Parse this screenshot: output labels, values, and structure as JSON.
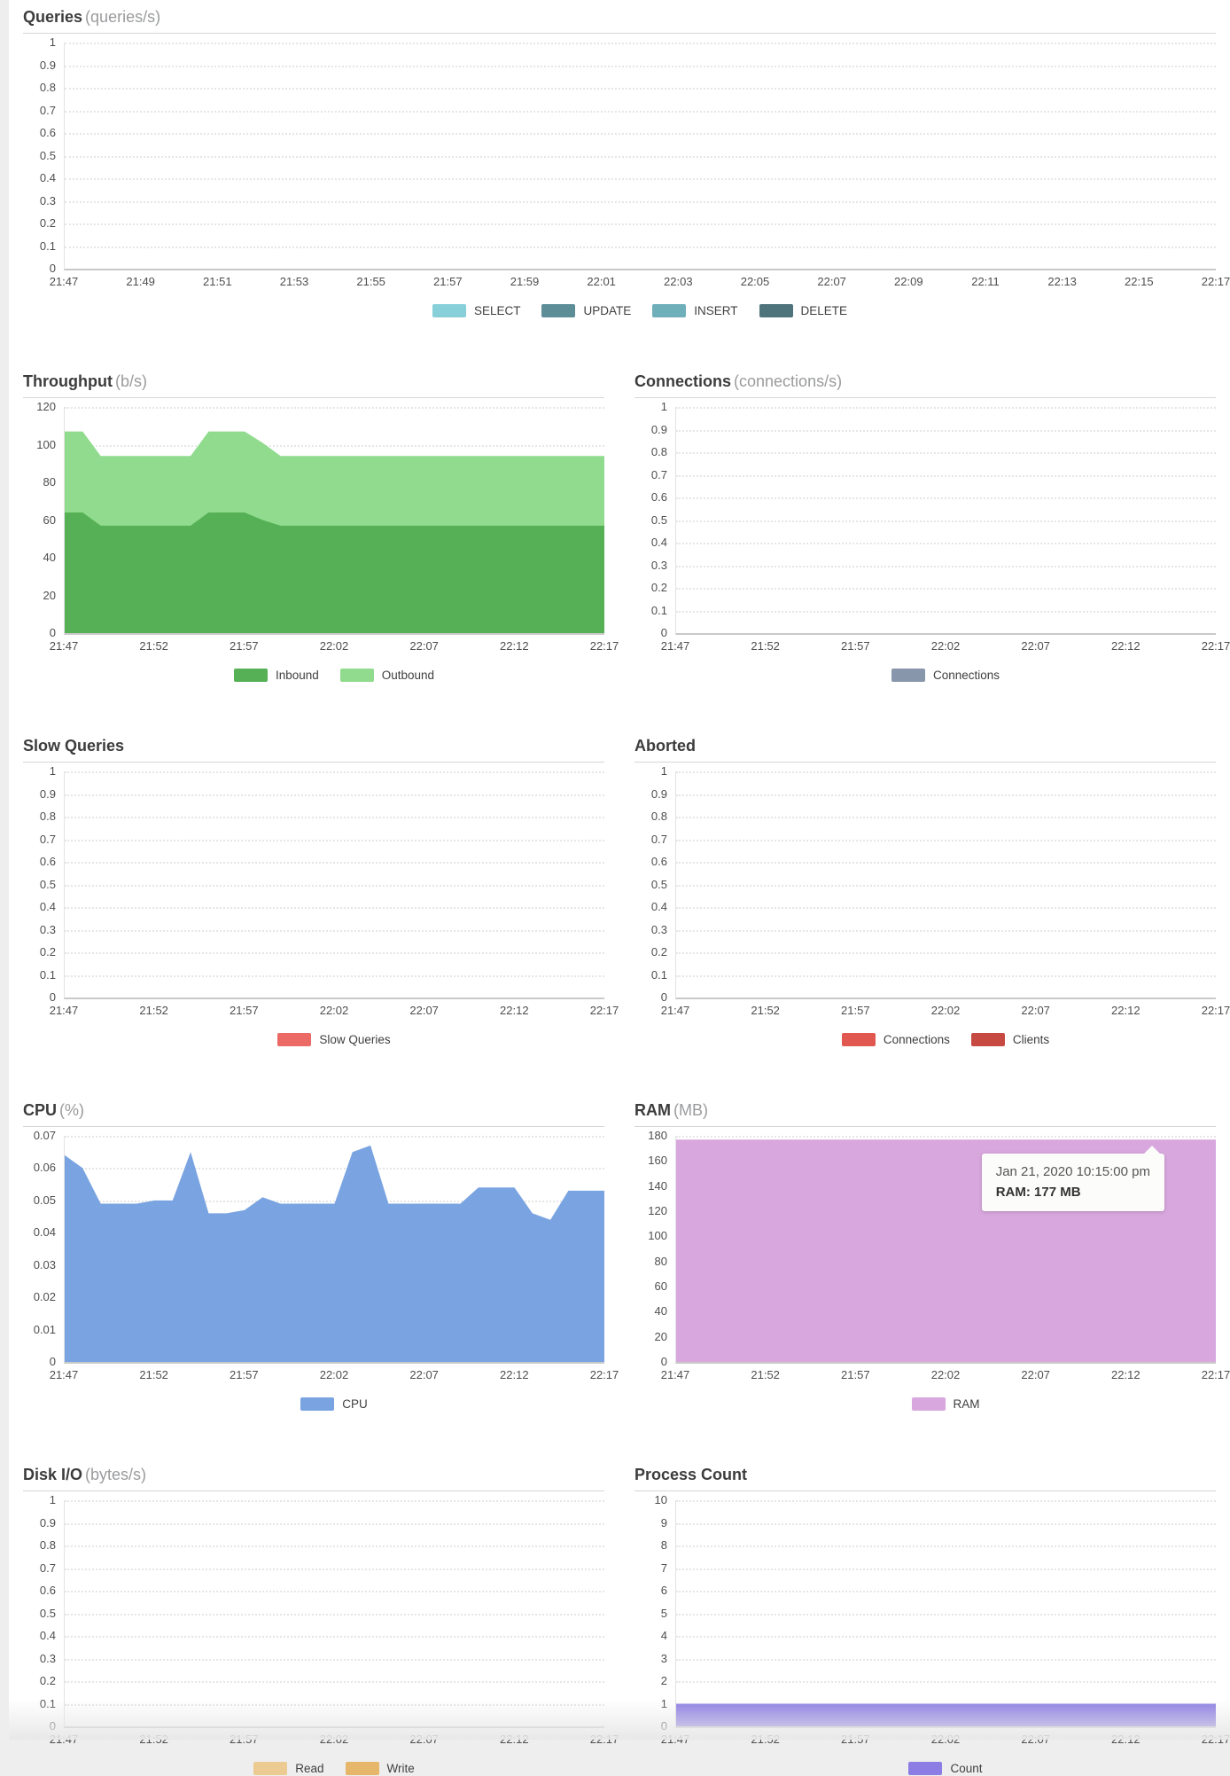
{
  "chart_data": [
    {
      "id": "queries",
      "type": "area",
      "title": "Queries",
      "unit": "(queries/s)",
      "ylim": [
        0,
        1
      ],
      "yticks": [
        "0",
        "0.1",
        "0.2",
        "0.3",
        "0.4",
        "0.5",
        "0.6",
        "0.7",
        "0.8",
        "0.9",
        "1"
      ],
      "x_labels": [
        "21:47",
        "21:49",
        "21:51",
        "21:53",
        "21:55",
        "21:57",
        "21:59",
        "22:01",
        "22:03",
        "22:05",
        "22:07",
        "22:09",
        "22:11",
        "22:13",
        "22:15",
        "22:17"
      ],
      "grid": "dotted",
      "legend_position": "bottom",
      "series": [],
      "legend": [
        {
          "label": "SELECT",
          "color": "#87d0d9"
        },
        {
          "label": "UPDATE",
          "color": "#5d8e98"
        },
        {
          "label": "INSERT",
          "color": "#6fafba"
        },
        {
          "label": "DELETE",
          "color": "#4f737b"
        }
      ]
    },
    {
      "id": "throughput",
      "type": "area",
      "title": "Throughput",
      "unit": "(b/s)",
      "ylim": [
        0,
        120
      ],
      "yticks": [
        "0",
        "20",
        "40",
        "60",
        "80",
        "100",
        "120"
      ],
      "x_labels": [
        "21:47",
        "21:52",
        "21:57",
        "22:02",
        "22:07",
        "22:12",
        "22:17"
      ],
      "grid": "dotted",
      "legend_position": "bottom",
      "series": [
        {
          "name": "Outbound",
          "color": "#90db8d",
          "values": [
            107,
            107,
            94,
            94,
            94,
            94,
            94,
            94,
            107,
            107,
            107,
            101,
            94,
            94,
            94,
            94,
            94,
            94,
            94,
            94,
            94,
            94,
            94,
            94,
            94,
            94,
            94,
            94,
            94,
            94,
            94
          ]
        },
        {
          "name": "Inbound",
          "color": "#55b056",
          "values": [
            64,
            64,
            57,
            57,
            57,
            57,
            57,
            57,
            64,
            64,
            64,
            60,
            57,
            57,
            57,
            57,
            57,
            57,
            57,
            57,
            57,
            57,
            57,
            57,
            57,
            57,
            57,
            57,
            57,
            57,
            57
          ]
        }
      ],
      "legend": [
        {
          "label": "Inbound",
          "color": "#55b056"
        },
        {
          "label": "Outbound",
          "color": "#90db8d"
        }
      ]
    },
    {
      "id": "connections",
      "type": "area",
      "title": "Connections",
      "unit": "(connections/s)",
      "ylim": [
        0,
        1
      ],
      "yticks": [
        "0",
        "0.1",
        "0.2",
        "0.3",
        "0.4",
        "0.5",
        "0.6",
        "0.7",
        "0.8",
        "0.9",
        "1"
      ],
      "x_labels": [
        "21:47",
        "21:52",
        "21:57",
        "22:02",
        "22:07",
        "22:12",
        "22:17"
      ],
      "grid": "dotted",
      "legend_position": "bottom",
      "series": [],
      "legend": [
        {
          "label": "Connections",
          "color": "#8796ab"
        }
      ]
    },
    {
      "id": "slow-queries",
      "type": "area",
      "title": "Slow Queries",
      "unit": "",
      "ylim": [
        0,
        1
      ],
      "yticks": [
        "0",
        "0.1",
        "0.2",
        "0.3",
        "0.4",
        "0.5",
        "0.6",
        "0.7",
        "0.8",
        "0.9",
        "1"
      ],
      "x_labels": [
        "21:47",
        "21:52",
        "21:57",
        "22:02",
        "22:07",
        "22:12",
        "22:17"
      ],
      "grid": "dotted",
      "legend_position": "bottom",
      "series": [],
      "legend": [
        {
          "label": "Slow Queries",
          "color": "#ec6a66"
        }
      ]
    },
    {
      "id": "aborted",
      "type": "area",
      "title": "Aborted",
      "unit": "",
      "ylim": [
        0,
        1
      ],
      "yticks": [
        "0",
        "0.1",
        "0.2",
        "0.3",
        "0.4",
        "0.5",
        "0.6",
        "0.7",
        "0.8",
        "0.9",
        "1"
      ],
      "x_labels": [
        "21:47",
        "21:52",
        "21:57",
        "22:02",
        "22:07",
        "22:12",
        "22:17"
      ],
      "grid": "dotted",
      "legend_position": "bottom",
      "series": [],
      "legend": [
        {
          "label": "Connections",
          "color": "#e0584f"
        },
        {
          "label": "Clients",
          "color": "#c64a41"
        }
      ]
    },
    {
      "id": "cpu",
      "type": "area",
      "title": "CPU",
      "unit": "(%)",
      "ylim": [
        0,
        0.07
      ],
      "yticks": [
        "0",
        "0.01",
        "0.02",
        "0.03",
        "0.04",
        "0.05",
        "0.06",
        "0.07"
      ],
      "x_labels": [
        "21:47",
        "21:52",
        "21:57",
        "22:02",
        "22:07",
        "22:12",
        "22:17"
      ],
      "grid": "dotted",
      "legend_position": "bottom",
      "series": [
        {
          "name": "CPU",
          "color": "#79a3e1",
          "values": [
            0.064,
            0.06,
            0.049,
            0.049,
            0.049,
            0.05,
            0.05,
            0.065,
            0.046,
            0.046,
            0.047,
            0.051,
            0.049,
            0.049,
            0.049,
            0.049,
            0.065,
            0.067,
            0.049,
            0.049,
            0.049,
            0.049,
            0.049,
            0.054,
            0.054,
            0.054,
            0.046,
            0.044,
            0.053,
            0.053,
            0.053
          ]
        }
      ],
      "legend": [
        {
          "label": "CPU",
          "color": "#79a3e1"
        }
      ]
    },
    {
      "id": "ram",
      "type": "area",
      "title": "RAM",
      "unit": "(MB)",
      "ylim": [
        0,
        180
      ],
      "yticks": [
        "0",
        "20",
        "40",
        "60",
        "80",
        "100",
        "120",
        "140",
        "160",
        "180"
      ],
      "x_labels": [
        "21:47",
        "21:52",
        "21:57",
        "22:02",
        "22:07",
        "22:12",
        "22:17"
      ],
      "grid": "dotted",
      "legend_position": "bottom",
      "series": [
        {
          "name": "RAM",
          "color": "#d8a7de",
          "values": [
            177,
            177,
            177,
            177,
            177,
            177,
            177,
            177,
            177,
            177,
            177,
            177,
            177,
            177,
            177,
            177,
            177,
            177,
            177,
            177,
            177,
            177,
            177,
            177,
            177,
            177,
            177,
            177,
            177,
            177,
            177
          ]
        }
      ],
      "legend": [
        {
          "label": "RAM",
          "color": "#d8a7de"
        }
      ],
      "tooltip": {
        "date": "Jan 21, 2020 10:15:00 pm",
        "value": "RAM: 177 MB"
      }
    },
    {
      "id": "disk-io",
      "type": "area",
      "title": "Disk I/O",
      "unit": "(bytes/s)",
      "ylim": [
        0,
        1
      ],
      "yticks": [
        "0",
        "0.1",
        "0.2",
        "0.3",
        "0.4",
        "0.5",
        "0.6",
        "0.7",
        "0.8",
        "0.9",
        "1"
      ],
      "x_labels": [
        "21:47",
        "21:52",
        "21:57",
        "22:02",
        "22:07",
        "22:12",
        "22:17"
      ],
      "grid": "dotted",
      "legend_position": "bottom",
      "series": [],
      "legend": [
        {
          "label": "Read",
          "color": "#eccb92"
        },
        {
          "label": "Write",
          "color": "#e6b76a"
        }
      ]
    },
    {
      "id": "process-count",
      "type": "area",
      "title": "Process Count",
      "unit": "",
      "ylim": [
        0,
        10
      ],
      "yticks": [
        "0",
        "1",
        "2",
        "3",
        "4",
        "5",
        "6",
        "7",
        "8",
        "9",
        "10"
      ],
      "x_labels": [
        "21:47",
        "21:52",
        "21:57",
        "22:02",
        "22:07",
        "22:12",
        "22:17"
      ],
      "grid": "dotted",
      "legend_position": "bottom",
      "series": [
        {
          "name": "Count",
          "color": "#8c7de4",
          "values": [
            1,
            1,
            1,
            1,
            1,
            1,
            1,
            1,
            1,
            1,
            1,
            1,
            1,
            1,
            1,
            1,
            1,
            1,
            1,
            1,
            1,
            1,
            1,
            1,
            1,
            1,
            1,
            1,
            1,
            1,
            1
          ]
        }
      ],
      "legend": [
        {
          "label": "Count",
          "color": "#8c7de4"
        }
      ]
    }
  ]
}
